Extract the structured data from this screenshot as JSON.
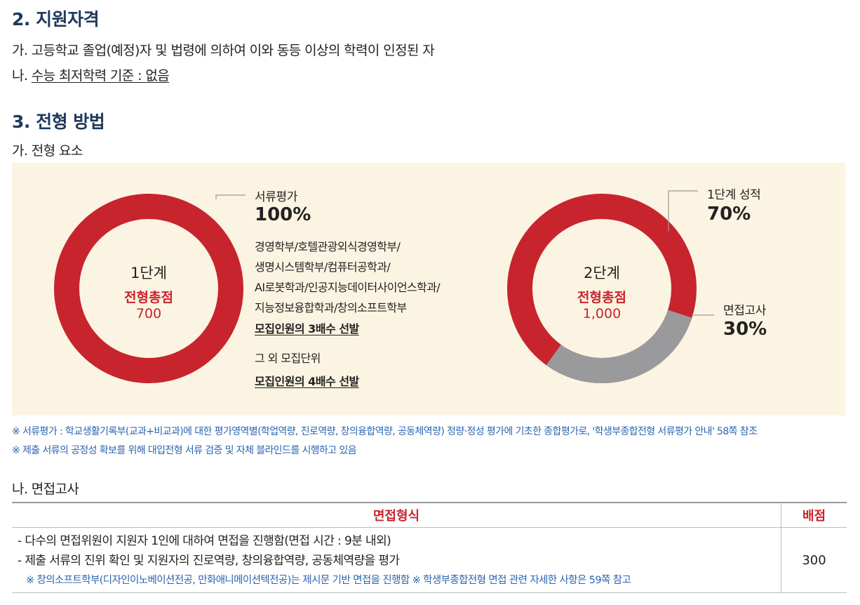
{
  "section2": {
    "title": "2. 지원자격",
    "item_a": "가. 고등학교 졸업(예정)자 및 법령에 의하여 이와 동등 이상의 학력이 인정된 자",
    "item_b_prefix": "나. ",
    "item_b_text": "수능 최저학력 기준 : 없음"
  },
  "section3": {
    "title": "3. 전형 방법",
    "sub_a": "가. 전형 요소"
  },
  "stage1": {
    "title": "1단계",
    "label": "전형총점",
    "total": "700",
    "callout_title": "서류평가",
    "callout_pct": "100%",
    "departments": [
      "경영학부/호텔관광외식경영학부/",
      "생명시스템학부/컴퓨터공학과/",
      "AI로봇학과/인공지능데이터사이언스학과/",
      "지능정보융합학과/창의소프트학부"
    ],
    "selection1": "모집인원의 3배수 선발",
    "other_units": "그 외 모집단위",
    "selection2": "모집인원의 4배수 선발",
    "share_document": 100
  },
  "stage2": {
    "title": "2단계",
    "label": "전형총점",
    "total": "1,000",
    "callout1_title": "1단계 성적",
    "callout1_pct": "70%",
    "callout2_title": "면접고사",
    "callout2_pct": "30%",
    "share_stage1": 70,
    "share_interview": 30
  },
  "colors": {
    "red": "#c8242e",
    "gray": "#9a9a9c",
    "panel": "#fcf4e2",
    "blue_note": "#2a64b0",
    "title_navy": "#1e3a5c"
  },
  "notes": [
    "※ 서류평가 : 학교생활기록부(교과+비교과)에 대한 평가영역별(학업역량, 진로역량, 창의융합역량, 공동체역량) 정량·정성 평가에 기초한 종합평가로, '학생부종합전형 서류평가 안내' 58쪽 참조",
    "※ 제출 서류의 공정성 확보를 위해 대입전형 서류 검증 및 자체 블라인드를 시행하고 있음"
  ],
  "interview": {
    "sub_b": "나. 면접고사",
    "col_format": "면접형식",
    "col_score": "배점",
    "lines": [
      "- 다수의 면접위원이 지원자 1인에 대하여 면접을 진행함(면접 시간 : 9분 내외)",
      "- 제출 서류의 진위 확인 및 지원자의 진로역량, 창의융합역량, 공동체역량을 평가"
    ],
    "note": "※ 창의소프트학부(디자인이노베이션전공, 만화애니메이션텍전공)는 제시문 기반 면접을 진행함  ※ 학생부종합전형 면접 관련 자세한 사항은 59쪽 참고",
    "score": "300"
  }
}
